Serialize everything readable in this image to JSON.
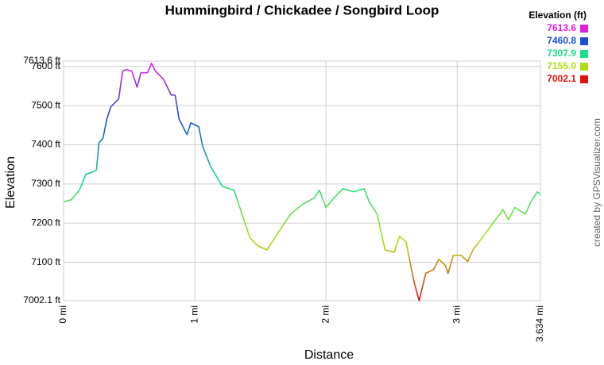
{
  "chart_data": {
    "type": "line",
    "title": "Hummingbird / Chickadee / Songbird Loop",
    "x_label": "Distance",
    "y_label": "Elevation",
    "credit": "created by GPSVisualizer.com",
    "legend_title": "Elevation (ft)",
    "color_scale": [
      {
        "value": 7613.6,
        "color": "#e020e0"
      },
      {
        "value": 7460.8,
        "color": "#1850d0"
      },
      {
        "value": 7307.9,
        "color": "#18e088"
      },
      {
        "value": 7155,
        "label": "7155.0",
        "color": "#b0e010"
      },
      {
        "value": 7002.1,
        "color": "#e01010"
      }
    ],
    "x": [
      0,
      0.06,
      0.12,
      0.17,
      0.21,
      0.25,
      0.27,
      0.3,
      0.33,
      0.36,
      0.42,
      0.45,
      0.48,
      0.52,
      0.56,
      0.59,
      0.64,
      0.67,
      0.7,
      0.76,
      0.82,
      0.85,
      0.88,
      0.94,
      0.97,
      1.03,
      1.06,
      1.12,
      1.21,
      1.3,
      1.36,
      1.42,
      1.48,
      1.55,
      1.61,
      1.67,
      1.73,
      1.82,
      1.91,
      1.95,
      2.0,
      2.06,
      2.13,
      2.21,
      2.29,
      2.33,
      2.39,
      2.45,
      2.52,
      2.56,
      2.61,
      2.64,
      2.67,
      2.71,
      2.76,
      2.82,
      2.86,
      2.91,
      2.93,
      2.97,
      3.03,
      3.08,
      3.12,
      3.2,
      3.27,
      3.35,
      3.39,
      3.44,
      3.52,
      3.56,
      3.61,
      3.634
    ],
    "values": [
      7254,
      7260,
      7284,
      7325,
      7329,
      7335,
      7406,
      7416,
      7466,
      7497,
      7517,
      7588,
      7592,
      7588,
      7547,
      7584,
      7584,
      7608,
      7588,
      7568,
      7527,
      7527,
      7466,
      7426,
      7456,
      7446,
      7396,
      7345,
      7294,
      7284,
      7223,
      7163,
      7142,
      7132,
      7163,
      7193,
      7223,
      7248,
      7264,
      7284,
      7240,
      7264,
      7288,
      7280,
      7288,
      7254,
      7223,
      7132,
      7126,
      7167,
      7152,
      7102,
      7051,
      7002.1,
      7072,
      7082,
      7108,
      7092,
      7072,
      7118,
      7118,
      7102,
      7132,
      7167,
      7199,
      7234,
      7209,
      7240,
      7223,
      7254,
      7280,
      7274
    ],
    "xlim": [
      0,
      3.634
    ],
    "ylim": [
      7002.1,
      7613.6
    ],
    "xticks": [
      {
        "value": 0,
        "label": "0 mi"
      },
      {
        "value": 1,
        "label": "1 mi"
      },
      {
        "value": 2,
        "label": "2 mi"
      },
      {
        "value": 3,
        "label": "3 mi"
      },
      {
        "value": 3.634,
        "label": "3.634 mi"
      }
    ],
    "yticks": [
      {
        "value": 7002.1,
        "label": "7002.1 ft"
      },
      {
        "value": 7100,
        "label": "7100 ft"
      },
      {
        "value": 7200,
        "label": "7200 ft"
      },
      {
        "value": 7300,
        "label": "7300 ft"
      },
      {
        "value": 7400,
        "label": "7400 ft"
      },
      {
        "value": 7500,
        "label": "7500 ft"
      },
      {
        "value": 7600,
        "label": "7600 ft"
      },
      {
        "value": 7613.6,
        "label": "7613.6 ft"
      }
    ],
    "grid": true
  }
}
